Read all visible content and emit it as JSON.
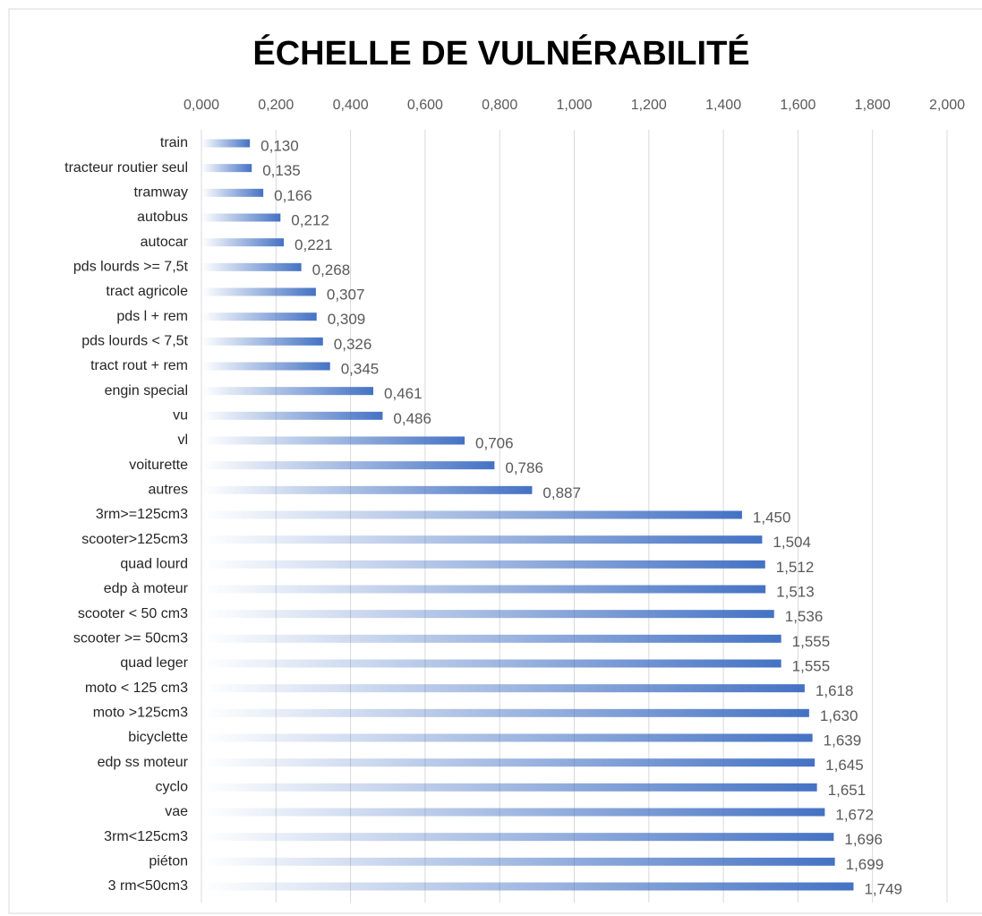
{
  "chart_data": {
    "type": "barh",
    "title": "ÉCHELLE DE VULNÉRABILITÉ",
    "categories": [
      "train",
      "tracteur routier seul",
      "tramway",
      "autobus",
      "autocar",
      "pds lourds >= 7,5t",
      "tract agricole",
      "pds l + rem",
      "pds lourds < 7,5t",
      "tract rout + rem",
      "engin special",
      "vu",
      "vl",
      "voiturette",
      "autres",
      "3rm>=125cm3",
      "scooter>125cm3",
      "quad lourd",
      "edp à moteur",
      "scooter < 50 cm3",
      "scooter >= 50cm3",
      "quad leger",
      "moto < 125 cm3",
      "moto >125cm3",
      "bicyclette",
      "edp ss moteur",
      "cyclo",
      "vae",
      "3rm<125cm3",
      "piéton",
      "3 rm<50cm3"
    ],
    "values": [
      0.13,
      0.135,
      0.166,
      0.212,
      0.221,
      0.268,
      0.307,
      0.309,
      0.326,
      0.345,
      0.461,
      0.486,
      0.706,
      0.786,
      0.887,
      1.45,
      1.504,
      1.512,
      1.513,
      1.536,
      1.555,
      1.555,
      1.618,
      1.63,
      1.639,
      1.645,
      1.651,
      1.672,
      1.696,
      1.699,
      1.749
    ],
    "value_labels": [
      "0,130",
      "0,135",
      "0,166",
      "0,212",
      "0,221",
      "0,268",
      "0,307",
      "0,309",
      "0,326",
      "0,345",
      "0,461",
      "0,486",
      "0,706",
      "0,786",
      "0,887",
      "1,450",
      "1,504",
      "1,512",
      "1,513",
      "1,536",
      "1,555",
      "1,555",
      "1,618",
      "1,630",
      "1,639",
      "1,645",
      "1,651",
      "1,672",
      "1,696",
      "1,699",
      "1,749"
    ],
    "color": "#4472c4",
    "xlim": [
      0,
      2
    ],
    "xticks": [
      {
        "value": 0,
        "label": "0,000"
      },
      {
        "value": 0.2,
        "label": "0,200"
      },
      {
        "value": 0.4,
        "label": "0,400"
      },
      {
        "value": 0.6,
        "label": "0,600"
      },
      {
        "value": 0.8,
        "label": "0,800"
      },
      {
        "value": 1,
        "label": "1,000"
      },
      {
        "value": 1.2,
        "label": "1,200"
      },
      {
        "value": 1.4,
        "label": "1,400"
      },
      {
        "value": 1.6,
        "label": "1,600"
      },
      {
        "value": 1.8,
        "label": "1,800"
      },
      {
        "value": 2,
        "label": "2,000"
      }
    ],
    "grid": true
  }
}
